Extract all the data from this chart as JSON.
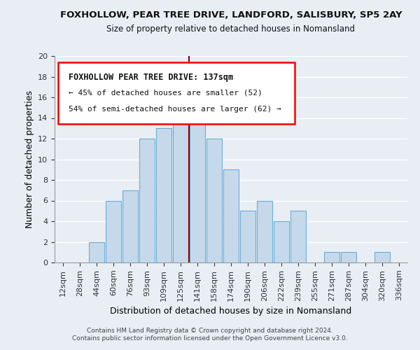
{
  "title": "FOXHOLLOW, PEAR TREE DRIVE, LANDFORD, SALISBURY, SP5 2AY",
  "subtitle": "Size of property relative to detached houses in Nomansland",
  "xlabel": "Distribution of detached houses by size in Nomansland",
  "ylabel": "Number of detached properties",
  "bar_labels": [
    "12sqm",
    "28sqm",
    "44sqm",
    "60sqm",
    "76sqm",
    "93sqm",
    "109sqm",
    "125sqm",
    "141sqm",
    "158sqm",
    "174sqm",
    "190sqm",
    "206sqm",
    "222sqm",
    "239sqm",
    "255sqm",
    "271sqm",
    "287sqm",
    "304sqm",
    "320sqm",
    "336sqm"
  ],
  "bar_values": [
    0,
    0,
    2,
    6,
    7,
    12,
    13,
    17,
    14,
    12,
    9,
    5,
    6,
    4,
    5,
    0,
    1,
    1,
    0,
    1,
    0
  ],
  "bar_color": "#c5d9ea",
  "bar_edge_color": "#6aadd5",
  "marker_value": 137,
  "marker_idx": 8,
  "ylim": [
    0,
    20
  ],
  "yticks": [
    0,
    2,
    4,
    6,
    8,
    10,
    12,
    14,
    16,
    18,
    20
  ],
  "annotation_title": "FOXHOLLOW PEAR TREE DRIVE: 137sqm",
  "annotation_line1": "← 45% of detached houses are smaller (52)",
  "annotation_line2": "54% of semi-detached houses are larger (62) →",
  "footer_line1": "Contains HM Land Registry data © Crown copyright and database right 2024.",
  "footer_line2": "Contains public sector information licensed under the Open Government Licence v3.0.",
  "bg_color": "#e8eef4",
  "grid_color": "#ffffff"
}
